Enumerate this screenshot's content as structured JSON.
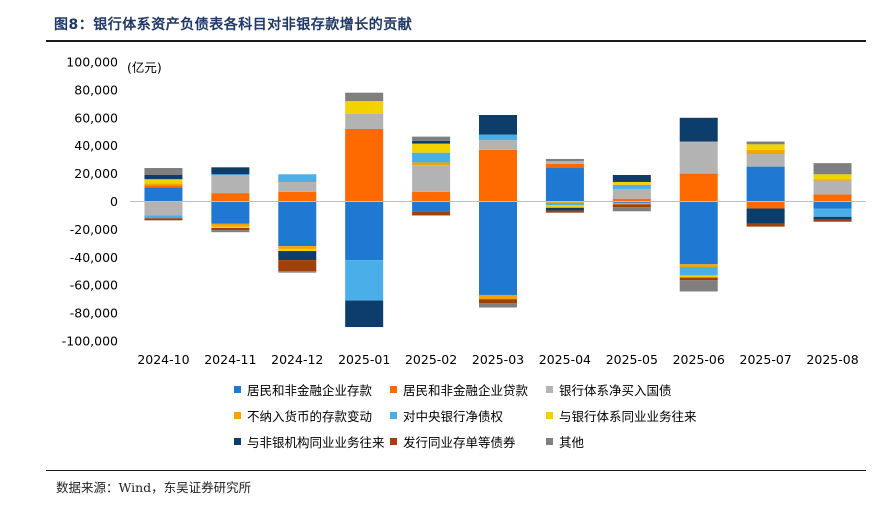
{
  "figure_title": "图8：银行体系资产负债表各科目对非银存款增长的贡献",
  "source_note": "数据来源：Wind，东吴证券研究所",
  "chart_data": {
    "type": "bar",
    "stacked": true,
    "unit_label": "(亿元)",
    "ylim": [
      -100000,
      100000
    ],
    "ytick_step": 20000,
    "ytick_labels": [
      "100,000",
      "80,000",
      "60,000",
      "40,000",
      "20,000",
      "0",
      "-20,000",
      "-40,000",
      "-60,000",
      "-80,000",
      "-100,000"
    ],
    "categories": [
      "2024-10",
      "2024-11",
      "2024-12",
      "2025-01",
      "2025-02",
      "2025-03",
      "2025-04",
      "2025-05",
      "2025-06",
      "2025-07",
      "2025-08"
    ],
    "legend_placement": "bottom",
    "series": [
      {
        "name": "居民和非金融企业存款",
        "color": "#1f78d1",
        "values": [
          10000,
          -16000,
          -32000,
          -42000,
          -7000,
          -67000,
          24000,
          -1000,
          -45000,
          25000,
          -5000
        ]
      },
      {
        "name": "居民和非金融企业贷款",
        "color": "#ff6a00",
        "values": [
          1500,
          6000,
          7000,
          52000,
          7000,
          37000,
          3000,
          2000,
          20000,
          -5000,
          5000
        ]
      },
      {
        "name": "银行体系净买入国债",
        "color": "#b3b3b3",
        "values": [
          -10000,
          13000,
          7000,
          11000,
          19000,
          7000,
          2000,
          7000,
          23000,
          9000,
          10000
        ]
      },
      {
        "name": "不纳入货币的存款变动",
        "color": "#f5a300",
        "values": [
          1500,
          -2000,
          -2000,
          0,
          2000,
          -3000,
          -1000,
          -1000,
          -2000,
          3000,
          1000
        ]
      },
      {
        "name": "对中央银行净债权",
        "color": "#4aaee8",
        "values": [
          -2000,
          500,
          5500,
          -29000,
          7000,
          4000,
          -1500,
          3000,
          -6000,
          0,
          -6000
        ]
      },
      {
        "name": "与银行体系同业业务往来",
        "color": "#f2d300",
        "values": [
          3000,
          -1000,
          -1500,
          9000,
          6500,
          0,
          -2000,
          2000,
          -1500,
          4000,
          3500
        ]
      },
      {
        "name": "与非银机构同业业务往来",
        "color": "#0d3d6b",
        "values": [
          3000,
          5000,
          -6500,
          -19000,
          2000,
          14000,
          -2000,
          5000,
          17000,
          -11000,
          -2000
        ]
      },
      {
        "name": "发行同业存单等债券",
        "color": "#a0400a",
        "values": [
          -1500,
          -1500,
          -8000,
          0,
          -3000,
          -3000,
          -1500,
          -2000,
          -2000,
          -2000,
          -1500
        ]
      },
      {
        "name": "其他",
        "color": "#7f7f7f",
        "values": [
          5000,
          -1500,
          -1000,
          6000,
          3000,
          -3000,
          1500,
          -3000,
          -8000,
          2000,
          8000
        ]
      }
    ]
  }
}
